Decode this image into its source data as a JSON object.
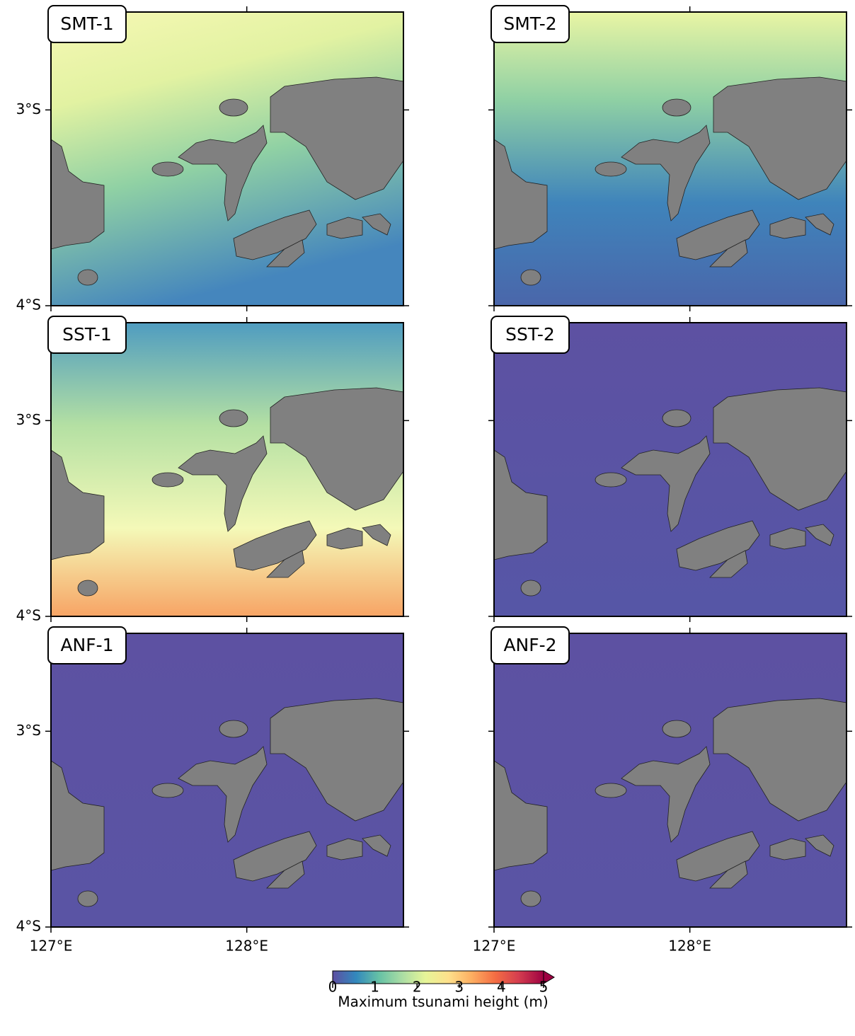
{
  "panels": [
    {
      "label": "SMT-1"
    },
    {
      "label": "SMT-2"
    },
    {
      "label": "SST-1"
    },
    {
      "label": "SST-2"
    },
    {
      "label": "ANF-1"
    },
    {
      "label": "ANF-2"
    }
  ],
  "xlim": [
    127,
    128.8
  ],
  "ylim": [
    -4,
    -2.5
  ],
  "xticks": [
    {
      "value": 127,
      "label": "127°E"
    },
    {
      "value": 128,
      "label": "128°E"
    }
  ],
  "yticks": [
    {
      "value": -3,
      "label": "3°S"
    },
    {
      "value": -4,
      "label": "4°S"
    }
  ],
  "colorbar": {
    "label": "Maximum tsunami height (m)",
    "lim": [
      0,
      5
    ],
    "ticks": [
      0,
      1,
      2,
      3,
      4,
      5
    ]
  }
}
